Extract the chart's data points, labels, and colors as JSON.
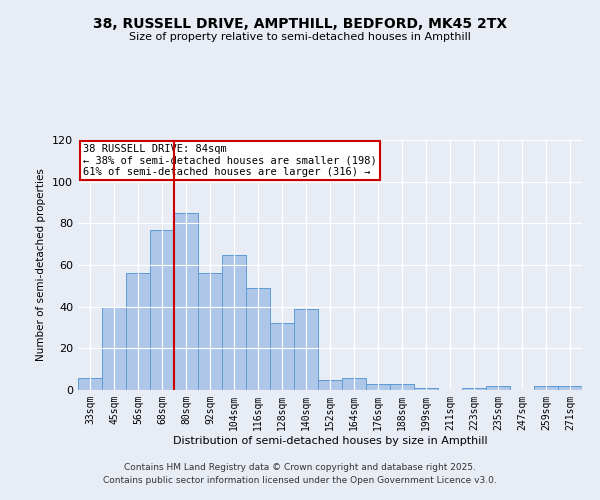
{
  "title1": "38, RUSSELL DRIVE, AMPTHILL, BEDFORD, MK45 2TX",
  "title2": "Size of property relative to semi-detached houses in Ampthill",
  "xlabel": "Distribution of semi-detached houses by size in Ampthill",
  "ylabel": "Number of semi-detached properties",
  "bar_labels": [
    "33sqm",
    "45sqm",
    "56sqm",
    "68sqm",
    "80sqm",
    "92sqm",
    "104sqm",
    "116sqm",
    "128sqm",
    "140sqm",
    "152sqm",
    "164sqm",
    "176sqm",
    "188sqm",
    "199sqm",
    "211sqm",
    "223sqm",
    "235sqm",
    "247sqm",
    "259sqm",
    "271sqm"
  ],
  "bar_values": [
    6,
    40,
    56,
    77,
    85,
    56,
    65,
    49,
    32,
    39,
    5,
    6,
    3,
    3,
    1,
    0,
    1,
    2,
    0,
    2,
    2
  ],
  "bar_color": "#aec6e8",
  "bar_edge_color": "#5b9bd5",
  "bar_width": 1.0,
  "vline_x": 3.5,
  "vline_color": "#cc0000",
  "annotation_title": "38 RUSSELL DRIVE: 84sqm",
  "annotation_line1": "← 38% of semi-detached houses are smaller (198)",
  "annotation_line2": "61% of semi-detached houses are larger (316) →",
  "annotation_box_color": "#ffffff",
  "annotation_border_color": "#cc0000",
  "footer1": "Contains HM Land Registry data © Crown copyright and database right 2025.",
  "footer2": "Contains public sector information licensed under the Open Government Licence v3.0.",
  "bg_color": "#e8ecf5",
  "plot_bg_color": "#e8ecf5",
  "ylim": [
    0,
    120
  ],
  "yticks": [
    0,
    20,
    40,
    60,
    80,
    100,
    120
  ]
}
